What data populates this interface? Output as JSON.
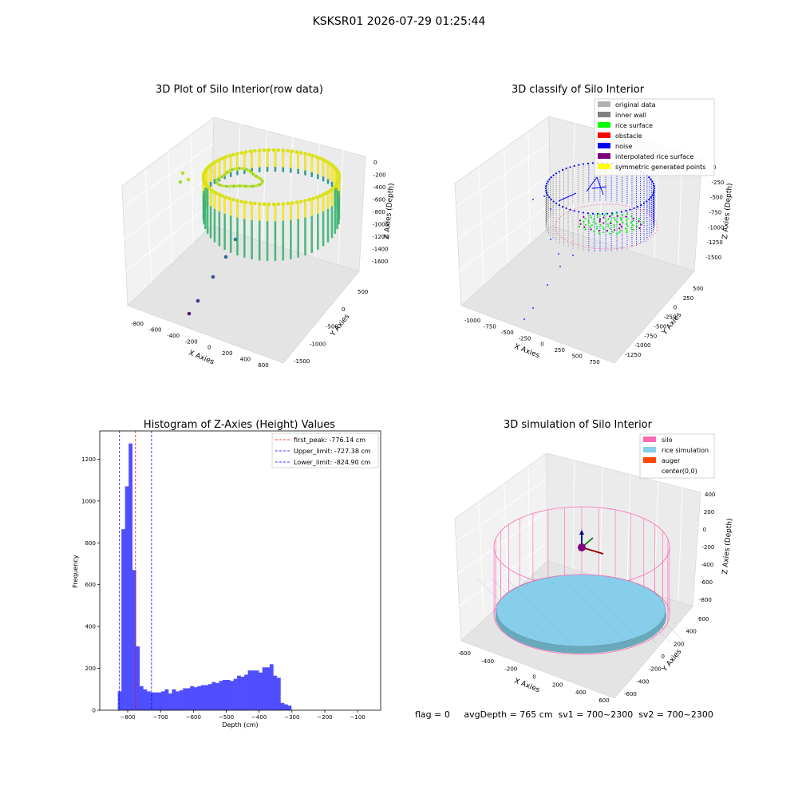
{
  "figure_title": "KSKSR01 2026-07-29 01:25:44",
  "footer": {
    "text": "flag = 0     avgDepth = 765 cm  sv1 = 700~2300  sv2 = 700~2300"
  },
  "colors": {
    "hist_bar": "#4f4fff",
    "first_peak_line": "#ff0000",
    "limit_line": "#0000ff",
    "silo": "#ff69b4",
    "rice": "#87ceeb",
    "auger": "#ff4500",
    "inner_wall": "#808080",
    "rice_surface": "#00ff00",
    "noise": "#0000ff",
    "viridis_low": "#440154",
    "viridis_mid": "#21918c",
    "viridis_high": "#fde725"
  },
  "chart_data": [
    {
      "type": "scatter",
      "projection": "3d",
      "title": "3D Plot of Silo Interior(row data)",
      "xlabel": "X Axies",
      "ylabel": "Y Axies",
      "zlabel": "Z Axies (Depth)",
      "x_ticks": [
        "-800",
        "-600",
        "-400",
        "-200",
        "0",
        "200",
        "400",
        "600"
      ],
      "y_ticks": [
        "500",
        "0",
        "-500",
        "-1000",
        "-1500"
      ],
      "z_ticks": [
        "0",
        "-200",
        "-400",
        "-600",
        "-800",
        "-1000",
        "-1200",
        "-1400",
        "-1600"
      ],
      "xlim": [
        -900,
        650
      ],
      "ylim": [
        -1600,
        700
      ],
      "zlim": [
        -1700,
        0
      ],
      "colormap": "viridis",
      "grid": true
    },
    {
      "type": "scatter",
      "projection": "3d",
      "title": "3D classify of Silo Interior",
      "xlabel": "X Axies",
      "ylabel": "Y Axies",
      "zlabel": "Z Axies (Depth)",
      "x_ticks": [
        "-1000",
        "-750",
        "-500",
        "-250",
        "0",
        "250",
        "500",
        "750"
      ],
      "y_ticks": [
        "500",
        "250",
        "0",
        "-250",
        "-500",
        "-750",
        "-1000",
        "-1250"
      ],
      "z_ticks": [
        "0",
        "-250",
        "-500",
        "-750",
        "-1000",
        "-1250",
        "-1500"
      ],
      "legend": [
        {
          "label": "original data",
          "color": "#b0b0b0"
        },
        {
          "label": "inner wall",
          "color": "#808080"
        },
        {
          "label": "rice surface",
          "color": "#00ff00"
        },
        {
          "label": "obstacle",
          "color": "#ff0000"
        },
        {
          "label": "noise",
          "color": "#0000ff"
        },
        {
          "label": "interpolated rice surface",
          "color": "#800080"
        },
        {
          "label": "symmetric generated points",
          "color": "#ffff00"
        }
      ],
      "legend_loc": "upper right",
      "grid": true
    },
    {
      "type": "bar",
      "title": "Histogram of Z-Axies (Height) Values",
      "xlabel": "Depth (cm)",
      "ylabel": "Frequency",
      "xlim": [
        -885,
        -30
      ],
      "ylim": [
        0,
        1335
      ],
      "x_ticks": [
        -800,
        -700,
        -600,
        -500,
        -400,
        -300,
        -200,
        -100
      ],
      "x_tick_labels": [
        "−800",
        "−700",
        "−600",
        "−500",
        "−400",
        "−300",
        "−200",
        "−100"
      ],
      "y_ticks": [
        0,
        200,
        400,
        600,
        800,
        1000,
        1200
      ],
      "bin_start": -830,
      "bin_width": 11,
      "values": [
        90,
        865,
        1070,
        1275,
        670,
        305,
        115,
        100,
        90,
        85,
        85,
        85,
        90,
        100,
        80,
        100,
        90,
        95,
        105,
        105,
        115,
        110,
        115,
        120,
        120,
        125,
        135,
        130,
        140,
        145,
        145,
        140,
        150,
        165,
        160,
        170,
        190,
        190,
        190,
        180,
        205,
        205,
        220,
        165,
        155,
        35,
        28,
        22
      ],
      "vlines": [
        {
          "label": "first_peak: -776.14 cm",
          "x": -776.14,
          "color": "#ff0000"
        },
        {
          "label": "Upper_limit: -727.38 cm",
          "x": -727.38,
          "color": "#0000ff"
        },
        {
          "label": "Lower_limit: -824.90 cm",
          "x": -824.9,
          "color": "#0000ff"
        }
      ],
      "legend_loc": "upper right"
    },
    {
      "type": "scatter",
      "projection": "3d",
      "title": "3D simulation of Silo Interior",
      "xlabel": "X Axies",
      "ylabel": "Y Axies",
      "zlabel": "Z Axies (Depth)",
      "x_ticks": [
        "-600",
        "-400",
        "-200",
        "0",
        "200",
        "400",
        "600"
      ],
      "y_ticks": [
        "600",
        "400",
        "200",
        "0",
        "-200",
        "-400",
        "-600"
      ],
      "z_ticks": [
        "400",
        "200",
        "0",
        "-200",
        "-400",
        "-600",
        "-800"
      ],
      "legend": [
        {
          "label": "silo",
          "color": "#ff69b4"
        },
        {
          "label": "rice simulation",
          "color": "#87ceeb"
        },
        {
          "label": "auger",
          "color": "#ff4500"
        },
        {
          "label": "center(0,0)",
          "color": ""
        }
      ],
      "legend_loc": "upper right",
      "grid": true
    }
  ]
}
